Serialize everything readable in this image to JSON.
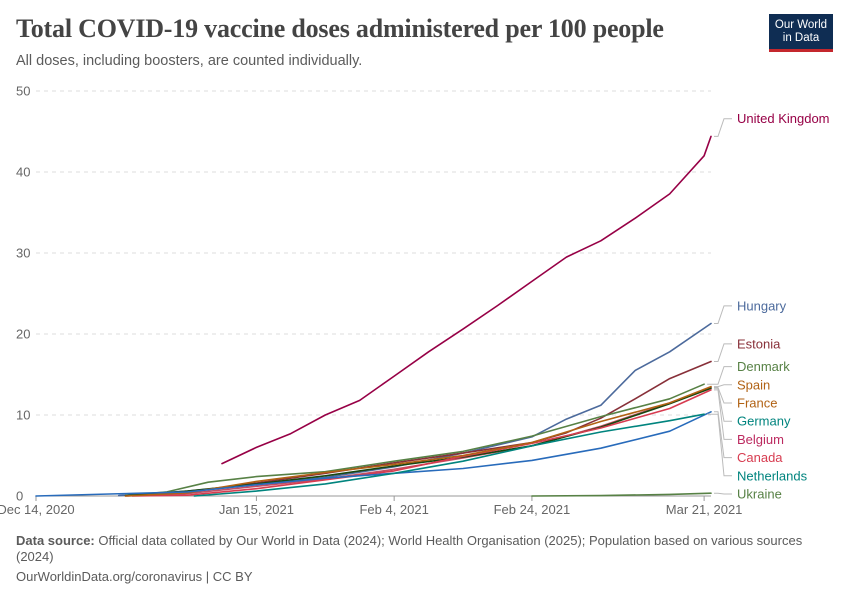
{
  "header": {
    "title": "Total COVID-19 vaccine doses administered per 100 people",
    "subtitle": "All doses, including boosters, are counted individually.",
    "logo_line1": "Our World",
    "logo_line2": "in Data"
  },
  "footer": {
    "source_label": "Data source:",
    "source_text": "Official data collated by Our World in Data (2024); World Health Organisation (2025); Population based on various sources (2024)",
    "url_text": "OurWorldinData.org/coronavirus | CC BY"
  },
  "chart_data": {
    "type": "line",
    "title": "Total COVID-19 vaccine doses administered per 100 people",
    "subtitle": "All doses, including boosters, are counted individually.",
    "xlabel": "",
    "ylabel": "",
    "ylim": [
      0,
      50
    ],
    "yticks": [
      0,
      10,
      20,
      30,
      40,
      50
    ],
    "xlim": [
      "2020-12-14",
      "2021-03-22"
    ],
    "xticks": [
      {
        "date": "2020-12-14",
        "label": "Dec 14, 2020"
      },
      {
        "date": "2021-01-15",
        "label": "Jan 15, 2021"
      },
      {
        "date": "2021-02-04",
        "label": "Feb 4, 2021"
      },
      {
        "date": "2021-02-24",
        "label": "Feb 24, 2021"
      },
      {
        "date": "2021-03-21",
        "label": "Mar 21, 2021"
      }
    ],
    "grid": "horizontal-dashed",
    "legend": "labels at right end of lines",
    "series": [
      {
        "name": "United Kingdom",
        "color": "#970046",
        "points": [
          [
            "2021-01-10",
            4.0
          ],
          [
            "2021-01-15",
            6.0
          ],
          [
            "2021-01-20",
            7.7
          ],
          [
            "2021-01-25",
            10.0
          ],
          [
            "2021-01-30",
            11.8
          ],
          [
            "2021-02-04",
            14.8
          ],
          [
            "2021-02-09",
            17.8
          ],
          [
            "2021-02-14",
            20.6
          ],
          [
            "2021-02-19",
            23.5
          ],
          [
            "2021-02-24",
            26.5
          ],
          [
            "2021-03-01",
            29.5
          ],
          [
            "2021-03-06",
            31.5
          ],
          [
            "2021-03-11",
            34.3
          ],
          [
            "2021-03-16",
            37.3
          ],
          [
            "2021-03-21",
            42.0
          ],
          [
            "2021-03-22",
            44.4
          ]
        ]
      },
      {
        "name": "Hungary",
        "color": "#4c6a9c",
        "points": [
          [
            "2020-12-26",
            0.05
          ],
          [
            "2021-01-05",
            0.6
          ],
          [
            "2021-01-15",
            1.4
          ],
          [
            "2021-01-25",
            2.3
          ],
          [
            "2021-02-04",
            3.6
          ],
          [
            "2021-02-14",
            5.3
          ],
          [
            "2021-02-24",
            7.3
          ],
          [
            "2021-03-01",
            9.5
          ],
          [
            "2021-03-06",
            11.2
          ],
          [
            "2021-03-11",
            15.5
          ],
          [
            "2021-03-16",
            17.8
          ],
          [
            "2021-03-22",
            21.3
          ]
        ]
      },
      {
        "name": "Estonia",
        "color": "#883039",
        "points": [
          [
            "2020-12-28",
            0.05
          ],
          [
            "2021-01-05",
            0.5
          ],
          [
            "2021-01-15",
            1.6
          ],
          [
            "2021-01-25",
            2.8
          ],
          [
            "2021-02-04",
            4.1
          ],
          [
            "2021-02-14",
            5.3
          ],
          [
            "2021-02-24",
            6.6
          ],
          [
            "2021-03-01",
            7.8
          ],
          [
            "2021-03-06",
            9.6
          ],
          [
            "2021-03-11",
            12.0
          ],
          [
            "2021-03-16",
            14.5
          ],
          [
            "2021-03-22",
            16.6
          ]
        ]
      },
      {
        "name": "Denmark",
        "color": "#578145",
        "points": [
          [
            "2020-12-27",
            0.05
          ],
          [
            "2021-01-02",
            0.5
          ],
          [
            "2021-01-08",
            1.7
          ],
          [
            "2021-01-15",
            2.4
          ],
          [
            "2021-01-25",
            3.0
          ],
          [
            "2021-02-04",
            4.3
          ],
          [
            "2021-02-14",
            5.5
          ],
          [
            "2021-02-24",
            7.4
          ],
          [
            "2021-03-06",
            9.8
          ],
          [
            "2021-03-16",
            12.0
          ],
          [
            "2021-03-21",
            13.8
          ]
        ]
      },
      {
        "name": "France",
        "color": "#c15065",
        "points": [
          [
            "2020-12-27",
            0.0
          ],
          [
            "2021-01-05",
            0.3
          ],
          [
            "2021-01-15",
            1.2
          ],
          [
            "2021-01-25",
            2.1
          ],
          [
            "2021-02-04",
            3.3
          ],
          [
            "2021-02-14",
            4.7
          ],
          [
            "2021-02-24",
            6.2
          ],
          [
            "2021-03-06",
            8.6
          ],
          [
            "2021-03-16",
            11.5
          ],
          [
            "2021-03-22",
            13.4
          ]
        ]
      },
      {
        "name": "Germany",
        "color": "#18470f",
        "points": [
          [
            "2020-12-27",
            0.05
          ],
          [
            "2021-01-05",
            0.6
          ],
          [
            "2021-01-15",
            1.5
          ],
          [
            "2021-01-25",
            2.5
          ],
          [
            "2021-02-04",
            3.7
          ],
          [
            "2021-02-14",
            4.8
          ],
          [
            "2021-02-24",
            6.2
          ],
          [
            "2021-03-06",
            8.5
          ],
          [
            "2021-03-16",
            11.4
          ],
          [
            "2021-03-22",
            13.3
          ]
        ]
      },
      {
        "name": "Belgium",
        "color": "#d73c50",
        "points": [
          [
            "2020-12-28",
            0.0
          ],
          [
            "2021-01-05",
            0.1
          ],
          [
            "2021-01-15",
            0.9
          ],
          [
            "2021-01-25",
            2.0
          ],
          [
            "2021-02-04",
            3.1
          ],
          [
            "2021-02-14",
            4.9
          ],
          [
            "2021-02-24",
            6.5
          ],
          [
            "2021-03-06",
            8.4
          ],
          [
            "2021-03-16",
            10.8
          ],
          [
            "2021-03-22",
            13.1
          ]
        ]
      },
      {
        "name": "Spain",
        "color": "#b16214",
        "points": [
          [
            "2020-12-27",
            0.0
          ],
          [
            "2021-01-05",
            0.4
          ],
          [
            "2021-01-15",
            1.8
          ],
          [
            "2021-01-25",
            2.9
          ],
          [
            "2021-02-04",
            3.9
          ],
          [
            "2021-02-14",
            5.0
          ],
          [
            "2021-02-24",
            6.6
          ],
          [
            "2021-03-06",
            9.2
          ],
          [
            "2021-03-16",
            11.5
          ],
          [
            "2021-03-22",
            13.5
          ]
        ]
      },
      {
        "name": "Canada",
        "color": "#286bbb",
        "points": [
          [
            "2020-12-14",
            0.0
          ],
          [
            "2021-01-05",
            0.5
          ],
          [
            "2021-01-15",
            1.4
          ],
          [
            "2021-01-25",
            2.2
          ],
          [
            "2021-02-04",
            2.8
          ],
          [
            "2021-02-14",
            3.4
          ],
          [
            "2021-02-24",
            4.4
          ],
          [
            "2021-03-06",
            5.9
          ],
          [
            "2021-03-16",
            8.0
          ],
          [
            "2021-03-22",
            10.4
          ]
        ]
      },
      {
        "name": "Netherlands",
        "color": "#00847e",
        "points": [
          [
            "2021-01-06",
            0.0
          ],
          [
            "2021-01-15",
            0.6
          ],
          [
            "2021-01-25",
            1.5
          ],
          [
            "2021-02-04",
            2.8
          ],
          [
            "2021-02-14",
            4.3
          ],
          [
            "2021-02-24",
            6.2
          ],
          [
            "2021-03-06",
            7.9
          ],
          [
            "2021-03-16",
            9.3
          ],
          [
            "2021-03-21",
            10.1
          ]
        ]
      },
      {
        "name": "Ukraine",
        "color": "#578145",
        "points": [
          [
            "2021-02-24",
            0.0
          ],
          [
            "2021-03-06",
            0.05
          ],
          [
            "2021-03-16",
            0.2
          ],
          [
            "2021-03-22",
            0.35
          ]
        ]
      }
    ],
    "labels": [
      {
        "series": "United Kingdom",
        "color": "#970046"
      },
      {
        "series": "Hungary",
        "color": "#4c6a9c"
      },
      {
        "series": "Estonia",
        "color": "#883039"
      },
      {
        "series": "Denmark",
        "color": "#578145"
      },
      {
        "series": "France",
        "color": "#b16214"
      },
      {
        "series": "Germany",
        "color": "#00847e"
      },
      {
        "series": "Belgium",
        "color": "#bc2a60"
      },
      {
        "series": "Spain",
        "color": "#b16214"
      },
      {
        "series": "Canada",
        "color": "#d73c50"
      },
      {
        "series": "Netherlands",
        "color": "#00847e"
      },
      {
        "series": "Ukraine",
        "color": "#578145"
      }
    ]
  }
}
